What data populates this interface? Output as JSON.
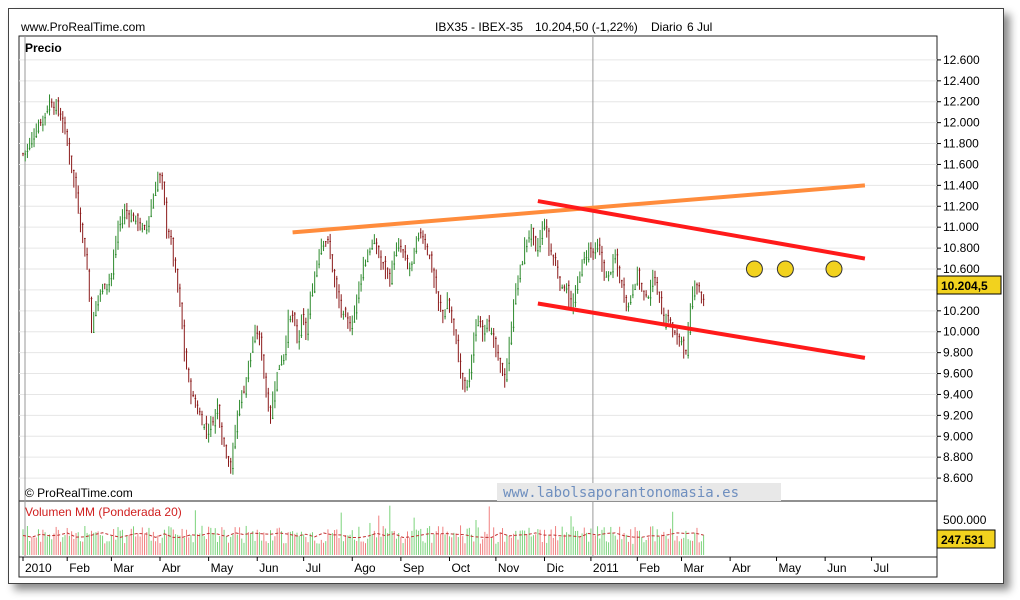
{
  "header": {
    "site": "www.ProRealTime.com",
    "instrument": "IBX35 - IBEX-35",
    "quote": "10.204,50 (-1,22%)",
    "period": "Diario",
    "date": "6 Jul"
  },
  "copyright": "© ProRealTime.com",
  "watermark": "www.labolsaporantonomasia.es",
  "colors": {
    "up": "#2e8b2e",
    "down": "#8b1a1a",
    "resistance": "#ff8c3c",
    "channel": "#ff1a1a",
    "marker": "#f2d21e",
    "volume_up": "#7bd37b",
    "volume_down": "#f08080",
    "volume_ma": "#c03030",
    "badge": "#f2d21e"
  },
  "chart_data": [
    {
      "type": "candlestick",
      "title": "Precio",
      "last_value_label": "10.204,5",
      "ylim": [
        8400,
        12800
      ],
      "yticks": [
        "12.600",
        "12.400",
        "12.200",
        "12.000",
        "11.800",
        "11.600",
        "11.400",
        "11.200",
        "11.000",
        "10.800",
        "10.600",
        "10.400",
        "10.200",
        "10.000",
        "9.800",
        "9.600",
        "9.400",
        "9.200",
        "9.000",
        "8.800",
        "8.600"
      ],
      "ytick_values": [
        12600,
        12400,
        12200,
        12000,
        11800,
        11600,
        11400,
        11200,
        11000,
        10800,
        10600,
        10400,
        10200,
        10000,
        9800,
        9600,
        9400,
        9200,
        9000,
        8800,
        8600
      ],
      "x_labels": [
        "2010",
        "Feb",
        "Mar",
        "Abr",
        "May",
        "Jun",
        "Jul",
        "Ago",
        "Sep",
        "Oct",
        "Nov",
        "Dic",
        "2011",
        "Feb",
        "Mar",
        "Abr",
        "May",
        "Jun",
        "Jul"
      ],
      "x_label_index": [
        0,
        20,
        40,
        62,
        84,
        106,
        127,
        149,
        171,
        193,
        214,
        236,
        257,
        278,
        298,
        320,
        341,
        363,
        384
      ],
      "close_path": [
        [
          0,
          11700
        ],
        [
          3,
          11800
        ],
        [
          6,
          11950
        ],
        [
          9,
          12050
        ],
        [
          12,
          12200
        ],
        [
          15,
          12150
        ],
        [
          18,
          12000
        ],
        [
          20,
          11800
        ],
        [
          23,
          11450
        ],
        [
          26,
          11050
        ],
        [
          29,
          10600
        ],
        [
          31,
          10050
        ],
        [
          34,
          10350
        ],
        [
          37,
          10450
        ],
        [
          40,
          10550
        ],
        [
          43,
          11000
        ],
        [
          46,
          11150
        ],
        [
          49,
          11100
        ],
        [
          52,
          11050
        ],
        [
          55,
          10950
        ],
        [
          58,
          11200
        ],
        [
          61,
          11500
        ],
        [
          63,
          11400
        ],
        [
          65,
          11000
        ],
        [
          67,
          10850
        ],
        [
          69,
          10550
        ],
        [
          71,
          10250
        ],
        [
          73,
          9800
        ],
        [
          75,
          9500
        ],
        [
          77,
          9350
        ],
        [
          80,
          9200
        ],
        [
          83,
          9050
        ],
        [
          86,
          9150
        ],
        [
          88,
          9300
        ],
        [
          90,
          9000
        ],
        [
          92,
          8850
        ],
        [
          94,
          8700
        ],
        [
          96,
          9050
        ],
        [
          98,
          9350
        ],
        [
          100,
          9450
        ],
        [
          102,
          9700
        ],
        [
          104,
          9900
        ],
        [
          106,
          10000
        ],
        [
          108,
          9800
        ],
        [
          110,
          9400
        ],
        [
          112,
          9200
        ],
        [
          114,
          9500
        ],
        [
          116,
          9700
        ],
        [
          118,
          9800
        ],
        [
          120,
          10100
        ],
        [
          122,
          10150
        ],
        [
          124,
          9900
        ],
        [
          126,
          10100
        ],
        [
          128,
          10000
        ],
        [
          130,
          10300
        ],
        [
          132,
          10550
        ],
        [
          134,
          10800
        ],
        [
          136,
          10900
        ],
        [
          138,
          10850
        ],
        [
          140,
          10600
        ],
        [
          142,
          10350
        ],
        [
          144,
          10200
        ],
        [
          146,
          10100
        ],
        [
          148,
          10050
        ],
        [
          150,
          10200
        ],
        [
          152,
          10450
        ],
        [
          154,
          10650
        ],
        [
          156,
          10750
        ],
        [
          158,
          10850
        ],
        [
          160,
          10800
        ],
        [
          162,
          10650
        ],
        [
          164,
          10600
        ],
        [
          166,
          10500
        ],
        [
          168,
          10750
        ],
        [
          170,
          10800
        ],
        [
          172,
          10750
        ],
        [
          174,
          10600
        ],
        [
          176,
          10650
        ],
        [
          178,
          10850
        ],
        [
          180,
          10950
        ],
        [
          182,
          10850
        ],
        [
          184,
          10700
        ],
        [
          186,
          10500
        ],
        [
          188,
          10250
        ],
        [
          190,
          10150
        ],
        [
          192,
          10300
        ],
        [
          194,
          10100
        ],
        [
          196,
          9900
        ],
        [
          198,
          9600
        ],
        [
          200,
          9450
        ],
        [
          202,
          9600
        ],
        [
          204,
          9950
        ],
        [
          206,
          10100
        ],
        [
          208,
          10000
        ],
        [
          210,
          10150
        ],
        [
          212,
          9950
        ],
        [
          214,
          9800
        ],
        [
          216,
          9650
        ],
        [
          218,
          9550
        ],
        [
          220,
          9850
        ],
        [
          222,
          10300
        ],
        [
          224,
          10500
        ],
        [
          226,
          10700
        ],
        [
          228,
          10900
        ],
        [
          230,
          10950
        ],
        [
          232,
          10750
        ],
        [
          234,
          10900
        ],
        [
          236,
          11050
        ],
        [
          238,
          10800
        ],
        [
          240,
          10700
        ],
        [
          242,
          10550
        ],
        [
          244,
          10400
        ],
        [
          246,
          10450
        ],
        [
          248,
          10200
        ],
        [
          250,
          10350
        ],
        [
          252,
          10600
        ],
        [
          254,
          10700
        ],
        [
          256,
          10800
        ],
        [
          258,
          10750
        ],
        [
          260,
          10800
        ],
        [
          262,
          10650
        ],
        [
          264,
          10500
        ],
        [
          266,
          10600
        ],
        [
          268,
          10700
        ],
        [
          270,
          10500
        ],
        [
          272,
          10350
        ],
        [
          274,
          10250
        ],
        [
          276,
          10450
        ],
        [
          278,
          10550
        ],
        [
          280,
          10400
        ],
        [
          282,
          10300
        ],
        [
          284,
          10450
        ],
        [
          286,
          10500
        ],
        [
          288,
          10300
        ],
        [
          290,
          10100
        ],
        [
          292,
          10150
        ],
        [
          294,
          10000
        ],
        [
          296,
          9900
        ],
        [
          298,
          9950
        ],
        [
          300,
          9750
        ],
        [
          302,
          10200
        ],
        [
          304,
          10500
        ],
        [
          306,
          10400
        ],
        [
          308,
          10250
        ]
      ],
      "resistance_line": {
        "from": [
          122,
          10950
        ],
        "to": [
          381,
          11400
        ]
      },
      "channel_upper": {
        "from": [
          233,
          11250
        ],
        "to": [
          381,
          10700
        ]
      },
      "channel_lower": {
        "from": [
          233,
          10270
        ],
        "to": [
          381,
          9750
        ]
      },
      "markers": [
        [
          331,
          10600
        ],
        [
          345,
          10600
        ],
        [
          367,
          10600
        ]
      ]
    },
    {
      "type": "bar",
      "title": "Volumen MM (Ponderada 20)",
      "yticks": [
        "500.000"
      ],
      "ytick_values": [
        500000
      ],
      "ylim": [
        0,
        620000
      ],
      "last_value_label": "247.531",
      "typical_volume": 250000,
      "ma_level": 240000
    }
  ]
}
